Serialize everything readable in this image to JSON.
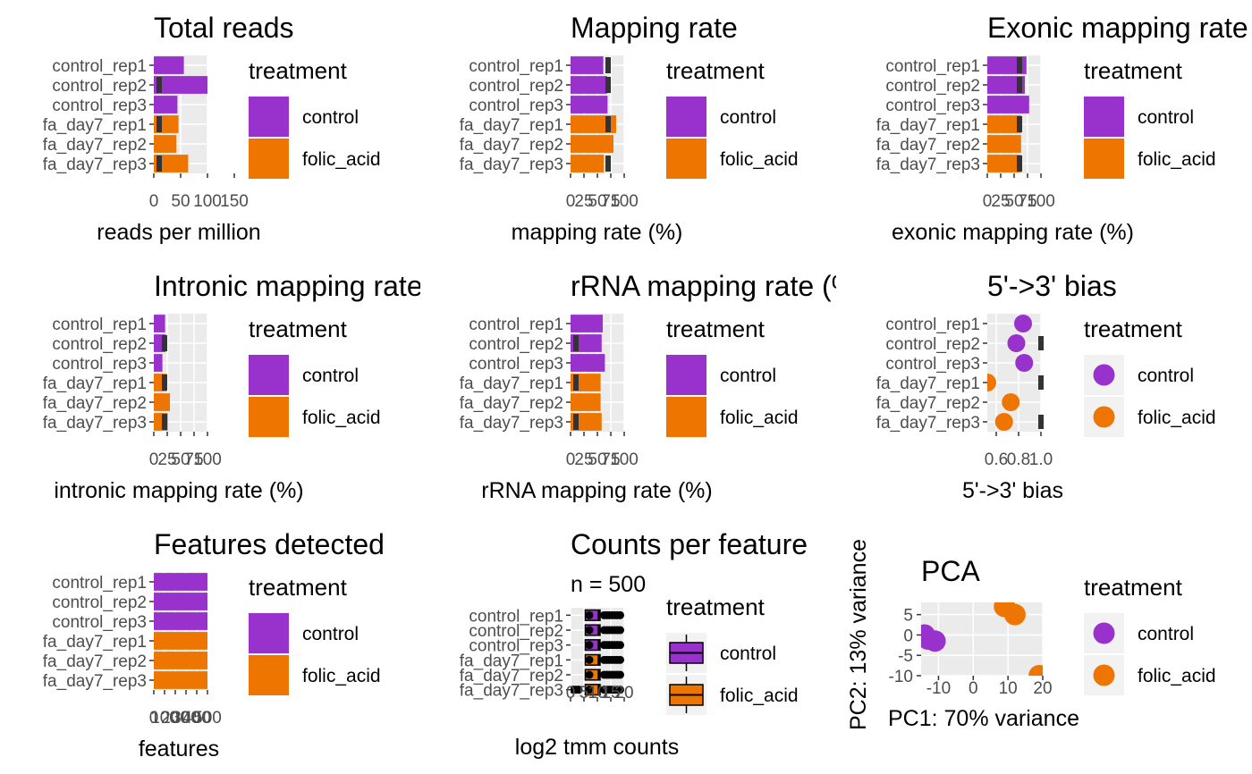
{
  "colors": {
    "control": "#9932CC",
    "folic_acid": "#EE7600",
    "panel": "#EBEBEB",
    "grid": "#FFFFFF",
    "marker": "#333333"
  },
  "legend": {
    "title": "treatment",
    "labels": [
      "control",
      "folic_acid"
    ]
  },
  "samples": [
    "control_rep1",
    "control_rep2",
    "control_rep3",
    "fa_day7_rep1",
    "fa_day7_rep2",
    "fa_day7_rep3"
  ],
  "chart_data": [
    {
      "id": "total_reads",
      "type": "bar",
      "title": "Total reads",
      "xlabel": "reads per million",
      "categories": [
        "control_rep1",
        "control_rep2",
        "control_rep3",
        "fa_day7_rep1",
        "fa_day7_rep2",
        "fa_day7_rep3"
      ],
      "groups": [
        "control",
        "control",
        "control",
        "folic_acid",
        "folic_acid",
        "folic_acid"
      ],
      "values": [
        56,
        100,
        44,
        46,
        42,
        64
      ],
      "reference": [
        null,
        10,
        null,
        10,
        null,
        10
      ],
      "xlim": [
        0,
        100
      ],
      "xticks": [
        0,
        50,
        100,
        150
      ],
      "xtick_labels": [
        "0",
        "50",
        "100",
        "150"
      ]
    },
    {
      "id": "mapping_rate",
      "type": "bar",
      "title": "Mapping rate",
      "xlabel": "mapping rate (%)",
      "categories": [
        "control_rep1",
        "control_rep2",
        "control_rep3",
        "fa_day7_rep1",
        "fa_day7_rep2",
        "fa_day7_rep3"
      ],
      "groups": [
        "control",
        "control",
        "control",
        "folic_acid",
        "folic_acid",
        "folic_acid"
      ],
      "values": [
        61,
        68,
        69,
        85,
        80,
        62
      ],
      "reference": [
        70,
        70,
        null,
        70,
        null,
        70
      ],
      "xlim": [
        0,
        100
      ],
      "xticks": [
        0,
        25,
        50,
        75,
        100
      ],
      "xtick_labels": [
        "0",
        "25",
        "50",
        "75",
        "100"
      ]
    },
    {
      "id": "exonic_rate",
      "type": "bar",
      "title": "Exonic mapping rate (%)",
      "xlabel": "exonic mapping rate (%)",
      "categories": [
        "control_rep1",
        "control_rep2",
        "control_rep3",
        "fa_day7_rep1",
        "fa_day7_rep2",
        "fa_day7_rep3"
      ],
      "groups": [
        "control",
        "control",
        "control",
        "folic_acid",
        "folic_acid",
        "folic_acid"
      ],
      "values": [
        73,
        70,
        78,
        63,
        63,
        63
      ],
      "reference": [
        60,
        60,
        null,
        60,
        null,
        60
      ],
      "xlim": [
        0,
        100
      ],
      "xticks": [
        0,
        25,
        50,
        75,
        100
      ],
      "xtick_labels": [
        "0",
        "25",
        "50",
        "75",
        "100"
      ]
    },
    {
      "id": "intronic_rate",
      "type": "bar",
      "title": "Intronic mapping rate (%)",
      "xlabel": "intronic mapping rate (%)",
      "categories": [
        "control_rep1",
        "control_rep2",
        "control_rep3",
        "fa_day7_rep1",
        "fa_day7_rep2",
        "fa_day7_rep3"
      ],
      "groups": [
        "control",
        "control",
        "control",
        "folic_acid",
        "folic_acid",
        "folic_acid"
      ],
      "values": [
        21,
        22,
        16,
        24,
        30,
        26
      ],
      "reference": [
        null,
        20,
        null,
        20,
        null,
        20
      ],
      "xlim": [
        0,
        100
      ],
      "xticks": [
        0,
        25,
        50,
        75,
        100
      ],
      "xtick_labels": [
        "0",
        "25",
        "50",
        "75",
        "100"
      ]
    },
    {
      "id": "rrna_rate",
      "type": "bar",
      "title": "rRNA mapping rate (%)",
      "xlabel": "rRNA mapping rate (%)",
      "categories": [
        "control_rep1",
        "control_rep2",
        "control_rep3",
        "fa_day7_rep1",
        "fa_day7_rep2",
        "fa_day7_rep3"
      ],
      "groups": [
        "control",
        "control",
        "control",
        "folic_acid",
        "folic_acid",
        "folic_acid"
      ],
      "values": [
        60,
        58,
        64,
        56,
        56,
        58
      ],
      "reference": [
        null,
        10,
        null,
        10,
        null,
        10
      ],
      "xlim": [
        0,
        100
      ],
      "xticks": [
        0,
        25,
        50,
        75,
        100
      ],
      "xtick_labels": [
        "0",
        "25",
        "50",
        "75",
        "100"
      ]
    },
    {
      "id": "bias",
      "type": "scatter",
      "title": "5'->3' bias",
      "xlabel": "5'->3' bias",
      "categories": [
        "control_rep1",
        "control_rep2",
        "control_rep3",
        "fa_day7_rep1",
        "fa_day7_rep2",
        "fa_day7_rep3"
      ],
      "groups": [
        "control",
        "control",
        "control",
        "folic_acid",
        "folic_acid",
        "folic_acid"
      ],
      "values": [
        0.84,
        0.78,
        0.85,
        0.52,
        0.73,
        0.67
      ],
      "reference": [
        null,
        1.0,
        null,
        1.0,
        null,
        1.0
      ],
      "xlim": [
        0.52,
        1.0
      ],
      "xticks": [
        0.6,
        0.8,
        1.0
      ],
      "xtick_labels": [
        "0.6",
        "0.8",
        "1.0"
      ]
    },
    {
      "id": "features",
      "type": "bar",
      "title": "Features detected",
      "xlabel": "features",
      "categories": [
        "control_rep1",
        "control_rep2",
        "control_rep3",
        "fa_day7_rep1",
        "fa_day7_rep2",
        "fa_day7_rep3"
      ],
      "groups": [
        "control",
        "control",
        "control",
        "folic_acid",
        "folic_acid",
        "folic_acid"
      ],
      "values": [
        500,
        500,
        500,
        500,
        500,
        500
      ],
      "xlim": [
        0,
        500
      ],
      "xticks": [
        0,
        100,
        200,
        300,
        400,
        500
      ],
      "xtick_labels": [
        "0",
        "100",
        "200",
        "300",
        "400",
        "500"
      ]
    },
    {
      "id": "counts",
      "type": "box",
      "title": "Counts per feature",
      "subtitle": "n = 500",
      "xlabel": "log2 tmm counts",
      "categories": [
        "control_rep1",
        "control_rep2",
        "control_rep3",
        "fa_day7_rep1",
        "fa_day7_rep2",
        "fa_day7_rep3"
      ],
      "groups": [
        "control",
        "control",
        "control",
        "folic_acid",
        "folic_acid",
        "folic_acid"
      ],
      "box": [
        [
          5.5,
          10.5,
          11,
          12
        ],
        [
          5.5,
          10.5,
          11,
          12
        ],
        [
          5.5,
          10.5,
          11,
          12
        ],
        [
          5.5,
          10.5,
          11,
          12
        ],
        [
          5.5,
          10.5,
          11,
          12
        ],
        [
          5.5,
          10.5,
          11,
          12
        ]
      ],
      "outliers": [
        [
          7,
          12.5,
          13.5,
          14.5,
          15.5,
          16.5,
          17.5,
          18.5
        ],
        [
          7,
          12.5,
          13.5,
          14.5,
          15.5,
          16.5,
          17.5,
          18.5
        ],
        [
          7,
          12.5,
          13.5,
          14.5,
          15.5,
          16.5,
          17.5,
          18.5
        ],
        [
          7,
          12.5,
          13.5,
          14.5,
          15.5,
          16.5,
          17.5,
          18.5
        ],
        [
          7,
          12.5,
          13.5,
          14.5,
          15.5,
          16.5,
          17.5,
          18.5
        ],
        [
          1,
          2,
          3,
          7,
          12.5,
          13.5,
          14.5,
          15.5,
          16.5,
          17.5,
          18.5
        ]
      ],
      "xlim": [
        0,
        20
      ],
      "xticks": [
        0,
        5,
        10,
        15,
        20
      ],
      "xtick_labels": [
        "0",
        "5",
        "10",
        "15",
        "20"
      ]
    },
    {
      "id": "pca",
      "type": "scatter",
      "title": "PCA",
      "xlabel": "PC1: 70% variance",
      "ylabel": "PC2: 13% variance",
      "points": [
        {
          "x": -14,
          "y": 0,
          "group": "control"
        },
        {
          "x": -13,
          "y": -1,
          "group": "control"
        },
        {
          "x": -11,
          "y": -1.5,
          "group": "control"
        },
        {
          "x": 9,
          "y": 7,
          "group": "folic_acid"
        },
        {
          "x": 12,
          "y": 5,
          "group": "folic_acid"
        },
        {
          "x": 19,
          "y": -10,
          "group": "folic_acid"
        }
      ],
      "xlim": [
        -15,
        20
      ],
      "ylim": [
        -10,
        8
      ],
      "xticks": [
        -10,
        0,
        10,
        20
      ],
      "yticks": [
        -10,
        -5,
        0,
        5
      ],
      "xtick_labels": [
        "-10",
        "0",
        "10",
        "20"
      ],
      "ytick_labels": [
        "-10",
        "-5",
        "0",
        "5"
      ]
    }
  ]
}
